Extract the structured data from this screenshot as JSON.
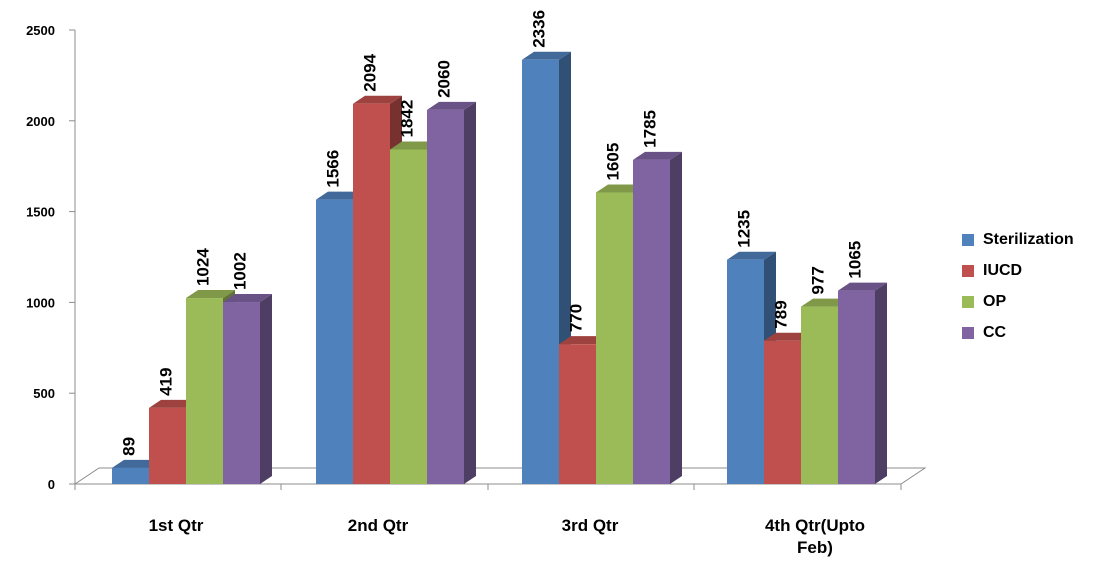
{
  "chart_data": {
    "type": "bar",
    "categories": [
      "1st Qtr",
      "2nd Qtr",
      "3rd Qtr",
      "4th Qtr(Upto Feb)"
    ],
    "series": [
      {
        "name": "Sterilization",
        "values": [
          89,
          1566,
          2336,
          1235
        ],
        "color": "#4F81BD"
      },
      {
        "name": "IUCD",
        "values": [
          419,
          2094,
          770,
          789
        ],
        "color": "#C0504D"
      },
      {
        "name": "OP",
        "values": [
          1024,
          1842,
          1605,
          977
        ],
        "color": "#9BBB59"
      },
      {
        "name": "CC",
        "values": [
          1002,
          2060,
          1785,
          1065
        ],
        "color": "#8064A2"
      }
    ],
    "yticks": [
      "0",
      "500",
      "1000",
      "1500",
      "2000",
      "2500"
    ],
    "ylim": [
      0,
      2500
    ],
    "grid": false,
    "legend": "right",
    "style": "3d-clustered-column"
  }
}
